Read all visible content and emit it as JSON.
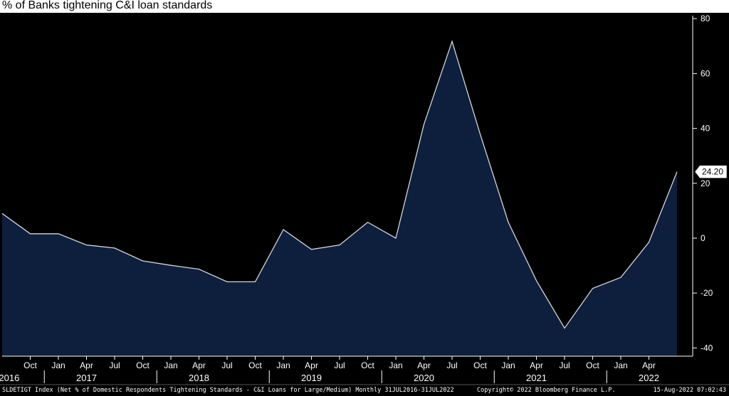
{
  "chart_data": {
    "type": "area",
    "title": "% of Banks tightening C&I loan standards",
    "x": [
      "2016-07",
      "2016-10",
      "2017-01",
      "2017-04",
      "2017-07",
      "2017-10",
      "2018-01",
      "2018-04",
      "2018-07",
      "2018-10",
      "2019-01",
      "2019-04",
      "2019-07",
      "2019-10",
      "2020-01",
      "2020-04",
      "2020-07",
      "2020-10",
      "2021-01",
      "2021-04",
      "2021-07",
      "2021-10",
      "2022-01",
      "2022-04",
      "2022-07"
    ],
    "series": [
      {
        "values": [
          9.0,
          1.6,
          1.6,
          -2.5,
          -3.6,
          -8.3,
          -9.9,
          -11.3,
          -15.9,
          -15.9,
          3.1,
          -4.1,
          -2.5,
          5.8,
          0.0,
          41.5,
          71.7,
          37.9,
          5.8,
          -15.5,
          -32.8,
          -18.3,
          -14.3,
          -1.5,
          24.2
        ]
      }
    ],
    "last_value_label": "24.20",
    "ylim": [
      -42,
      82
    ],
    "yticks": [
      80,
      60,
      40,
      20,
      0,
      -20,
      -40
    ],
    "ytick_labels": [
      "80",
      "60",
      "40",
      "20",
      "0",
      "-20",
      "-40"
    ],
    "month_ticks": [
      {
        "label": "Oct",
        "index": 1
      },
      {
        "label": "Jan",
        "index": 2
      },
      {
        "label": "Apr",
        "index": 3
      },
      {
        "label": "Jul",
        "index": 4
      },
      {
        "label": "Oct",
        "index": 5
      },
      {
        "label": "Jan",
        "index": 6
      },
      {
        "label": "Apr",
        "index": 7
      },
      {
        "label": "Jul",
        "index": 8
      },
      {
        "label": "Oct",
        "index": 9
      },
      {
        "label": "Jan",
        "index": 10
      },
      {
        "label": "Apr",
        "index": 11
      },
      {
        "label": "Jul",
        "index": 12
      },
      {
        "label": "Oct",
        "index": 13
      },
      {
        "label": "Jan",
        "index": 14
      },
      {
        "label": "Apr",
        "index": 15
      },
      {
        "label": "Jul",
        "index": 16
      },
      {
        "label": "Oct",
        "index": 17
      },
      {
        "label": "Jan",
        "index": 18
      },
      {
        "label": "Apr",
        "index": 19
      },
      {
        "label": "Jul",
        "index": 20
      },
      {
        "label": "Oct",
        "index": 21
      },
      {
        "label": "Jan",
        "index": 22
      },
      {
        "label": "Apr",
        "index": 23
      }
    ],
    "year_labels": [
      {
        "label": "2016",
        "index": 0.25
      },
      {
        "label": "2017",
        "index": 3.0
      },
      {
        "label": "2018",
        "index": 7.0
      },
      {
        "label": "2019",
        "index": 11.0
      },
      {
        "label": "2020",
        "index": 15.0
      },
      {
        "label": "2021",
        "index": 19.0
      },
      {
        "label": "2022",
        "index": 23.0
      }
    ],
    "year_separators": [
      1.5,
      5.5,
      9.5,
      13.5,
      17.5,
      21.5
    ],
    "grid": false,
    "fill_color": "#0d1f3c",
    "line_color": "#d6d6d6",
    "background": "#000000"
  },
  "footer": {
    "left": "SLDETIGT Index (Net % of Domestic Respondents Tightening Standards - C&I Loans for Large/Medium)  Monthly 31JUL2016-31JUL2022",
    "center": "Copyright© 2022 Bloomberg Finance L.P.",
    "right": "15-Aug-2022 07:02:43"
  }
}
